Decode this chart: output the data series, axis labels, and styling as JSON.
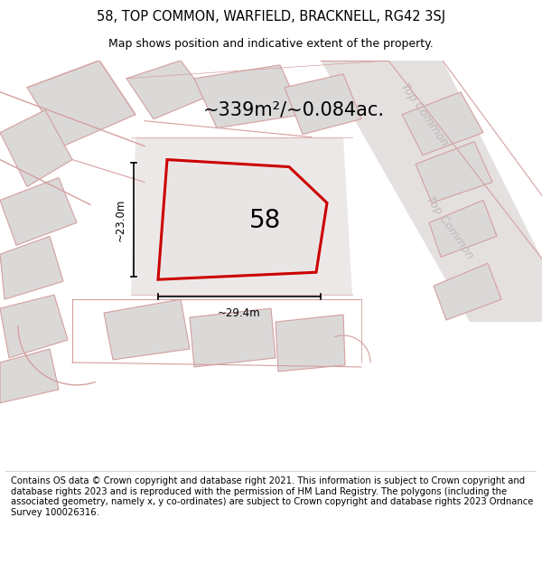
{
  "title": "58, TOP COMMON, WARFIELD, BRACKNELL, RG42 3SJ",
  "subtitle": "Map shows position and indicative extent of the property.",
  "area_label": "~339m²/~0.084ac.",
  "plot_number": "58",
  "width_label": "~29.4m",
  "height_label": "~23.0m",
  "footer_lines": [
    "Contains OS data © Crown copyright and database right 2021. This information is subject to Crown copyright and database rights 2023 and is reproduced with the permission of",
    "HM Land Registry. The polygons (including the associated geometry, namely x, y co-ordinates) are subject to Crown copyright and database rights 2023 Ordnance Survey",
    "100026316."
  ],
  "map_bg": "#f5f2f2",
  "plot_fill": "#eeeaea",
  "plot_edge_color": "#cc0000",
  "plot_edge_width": 2.2,
  "building_fill": "#dbd8d8",
  "building_edge": "#d4a0a0",
  "road_fill": "#e8e2e2",
  "road_label_color": "#c0b8b8",
  "dim_color": "#000000",
  "title_fontsize": 10.5,
  "subtitle_fontsize": 9,
  "area_fontsize": 15,
  "plot_num_fontsize": 20,
  "dim_fontsize": 8.5,
  "footer_fontsize": 7.2,
  "road_label_fontsize": 9
}
